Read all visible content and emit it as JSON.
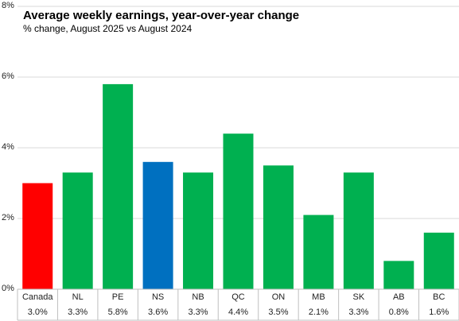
{
  "chart_data": {
    "type": "bar",
    "title": "Average weekly earnings, year-over-year change",
    "subtitle": "% change, August 2025 vs August 2024",
    "categories": [
      "Canada",
      "NL",
      "PE",
      "NS",
      "NB",
      "QC",
      "ON",
      "MB",
      "SK",
      "AB",
      "BC"
    ],
    "values": [
      3.0,
      3.3,
      5.8,
      3.6,
      3.3,
      4.4,
      3.5,
      2.1,
      3.3,
      0.8,
      1.6
    ],
    "value_labels": [
      "3.0%",
      "3.3%",
      "5.8%",
      "3.6%",
      "3.3%",
      "4.4%",
      "3.5%",
      "2.1%",
      "3.3%",
      "0.8%",
      "1.6%"
    ],
    "bar_colors": [
      "#ff0000",
      "#00b050",
      "#00b050",
      "#0070c0",
      "#00b050",
      "#00b050",
      "#00b050",
      "#00b050",
      "#00b050",
      "#00b050",
      "#00b050"
    ],
    "ylim": [
      0,
      8
    ],
    "y_ticks": [
      0,
      2,
      4,
      6,
      8
    ],
    "y_tick_labels": [
      "0%",
      "2%",
      "4%",
      "6%",
      "8%"
    ],
    "xlabel": "",
    "ylabel": "",
    "grid": "horizontal"
  }
}
